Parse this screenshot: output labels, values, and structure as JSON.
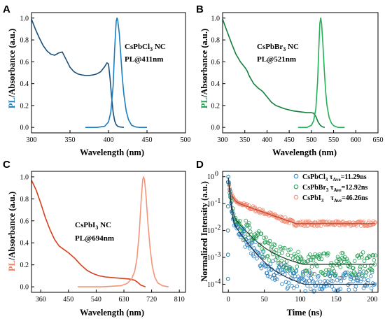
{
  "chart_data": [
    {
      "type": "line",
      "panel": "A",
      "ylabel_colored": "PL",
      "ylabel_sep": "/",
      "ylabel_rest": "Absorbance (a.u.)",
      "ylabel_color": "#1a7dc0",
      "xlabel": "Wavelength (nm)",
      "xlim": [
        300,
        500
      ],
      "ylim": [
        -0.05,
        1.05
      ],
      "xticks": [
        300,
        350,
        400,
        450,
        500
      ],
      "yticks": [
        0.0,
        0.2,
        0.4,
        0.6,
        0.8,
        1.0
      ],
      "annotation_l1_main": "CsPbCl",
      "annotation_l1_sub": "3",
      "annotation_l1_rest": " NC",
      "annotation_l2": "PL@411nm",
      "series": [
        {
          "role": "absorbance",
          "color": "#1a4f7a",
          "x": [
            300,
            305,
            310,
            315,
            320,
            325,
            330,
            335,
            340,
            345,
            350,
            355,
            360,
            365,
            370,
            375,
            380,
            385,
            390,
            395,
            398,
            400,
            402,
            404,
            406,
            408,
            410,
            412,
            415,
            420
          ],
          "y": [
            0.99,
            0.9,
            0.82,
            0.75,
            0.7,
            0.67,
            0.66,
            0.68,
            0.69,
            0.62,
            0.55,
            0.51,
            0.49,
            0.48,
            0.475,
            0.475,
            0.48,
            0.49,
            0.51,
            0.555,
            0.59,
            0.58,
            0.45,
            0.28,
            0.14,
            0.06,
            0.025,
            0.01,
            0.004,
            0.0
          ]
        },
        {
          "role": "PL",
          "color": "#1a7dc0",
          "x": [
            370,
            385,
            395,
            400,
            403,
            406,
            408,
            410,
            411,
            412,
            414,
            416,
            418,
            420,
            423,
            426,
            430,
            435,
            440,
            450
          ],
          "y": [
            0.0,
            0.0,
            0.01,
            0.05,
            0.14,
            0.38,
            0.72,
            0.97,
            1.0,
            0.98,
            0.86,
            0.66,
            0.45,
            0.3,
            0.15,
            0.07,
            0.02,
            0.005,
            0.0,
            0.0
          ]
        }
      ]
    },
    {
      "type": "line",
      "panel": "B",
      "ylabel_colored": "PL",
      "ylabel_sep": "/",
      "ylabel_rest": "Absorbance (a.u.)",
      "ylabel_color": "#16a34a",
      "xlabel": "Wavelength (nm)",
      "xlim": [
        300,
        650
      ],
      "ylim": [
        -0.05,
        1.05
      ],
      "xticks": [
        300,
        350,
        400,
        450,
        500,
        550,
        600,
        650
      ],
      "yticks": [
        0.0,
        0.2,
        0.4,
        0.6,
        0.8,
        1.0
      ],
      "annotation_l1_main": "CsPbBr",
      "annotation_l1_sub": "3",
      "annotation_l1_rest": " NC",
      "annotation_l2": "PL@521nm",
      "series": [
        {
          "role": "absorbance",
          "color": "#14803c",
          "x": [
            300,
            310,
            320,
            330,
            340,
            350,
            355,
            360,
            370,
            380,
            390,
            400,
            410,
            420,
            440,
            460,
            480,
            490,
            500,
            505,
            510,
            515,
            520,
            525,
            530
          ],
          "y": [
            0.99,
            0.88,
            0.77,
            0.67,
            0.6,
            0.55,
            0.52,
            0.47,
            0.4,
            0.36,
            0.33,
            0.28,
            0.23,
            0.2,
            0.17,
            0.15,
            0.14,
            0.135,
            0.135,
            0.13,
            0.1,
            0.05,
            0.02,
            0.005,
            0.0
          ]
        },
        {
          "role": "PL",
          "color": "#22b055",
          "x": [
            470,
            490,
            500,
            505,
            510,
            514,
            517,
            519,
            521,
            523,
            526,
            529,
            532,
            535,
            540,
            545,
            550,
            560,
            575
          ],
          "y": [
            0.0,
            0.0,
            0.02,
            0.06,
            0.17,
            0.42,
            0.75,
            0.95,
            1.0,
            0.95,
            0.76,
            0.52,
            0.33,
            0.2,
            0.09,
            0.04,
            0.015,
            0.0,
            0.0
          ]
        }
      ]
    },
    {
      "type": "line",
      "panel": "C",
      "ylabel_colored": "PL",
      "ylabel_sep": "/",
      "ylabel_rest": "Absorbance (a.u.)",
      "ylabel_color": "#f08060",
      "xlabel": "Wavelength (nm)",
      "xlim": [
        330,
        830
      ],
      "ylim": [
        -0.05,
        1.05
      ],
      "xticks": [
        360,
        450,
        540,
        630,
        720,
        810
      ],
      "yticks": [
        0.0,
        0.2,
        0.4,
        0.6,
        0.8,
        1.0
      ],
      "annotation_l1_main": "CsPbI",
      "annotation_l1_sub": "3",
      "annotation_l1_rest": " NC",
      "annotation_l2": "PL@694nm",
      "series": [
        {
          "role": "absorbance",
          "color": "#d4421b",
          "x": [
            330,
            345,
            360,
            375,
            390,
            405,
            420,
            435,
            450,
            470,
            490,
            510,
            530,
            550,
            570,
            590,
            610,
            630,
            650,
            665,
            675,
            685,
            700
          ],
          "y": [
            0.97,
            0.88,
            0.76,
            0.63,
            0.52,
            0.43,
            0.37,
            0.34,
            0.31,
            0.26,
            0.2,
            0.15,
            0.12,
            0.1,
            0.09,
            0.085,
            0.08,
            0.075,
            0.07,
            0.06,
            0.04,
            0.015,
            0.0
          ]
        },
        {
          "role": "PL",
          "color": "#f4957a",
          "x": [
            480,
            560,
            620,
            640,
            655,
            665,
            672,
            680,
            686,
            691,
            694,
            697,
            702,
            708,
            715,
            722,
            730,
            740,
            755,
            775
          ],
          "y": [
            0.0,
            0.0,
            0.01,
            0.03,
            0.07,
            0.14,
            0.25,
            0.5,
            0.78,
            0.97,
            1.0,
            0.97,
            0.82,
            0.58,
            0.35,
            0.19,
            0.09,
            0.035,
            0.01,
            0.0
          ]
        }
      ]
    },
    {
      "type": "scatter",
      "panel": "D",
      "ylabel": "Normalized Intensity (a.u.)",
      "xlabel": "Time (ns)",
      "xlim": [
        -8,
        208
      ],
      "ylim_log10": [
        -4.3,
        0.2
      ],
      "yscale": "log",
      "xticks": [
        0,
        50,
        100,
        150,
        200
      ],
      "yticks_exp": [
        -4,
        -3,
        -2,
        -1,
        0
      ],
      "ytick_base": "10",
      "legend_position": "top-right",
      "series": [
        {
          "name_main": "CsPbCl",
          "name_sub": "3",
          "tau_label": " τ",
          "tau_sub": "Ave",
          "tau_value": "=11.29ns",
          "color": "#2a7fc1",
          "tau": 11.29,
          "floor": 0.0001,
          "fit_color": "#1f2f3f"
        },
        {
          "name_main": "CsPbBr",
          "name_sub": "3",
          "tau_label": " τ",
          "tau_sub": "Ave",
          "tau_value": "=12.92ns",
          "color": "#1e9a4e",
          "tau": 12.92,
          "floor": 0.00055,
          "fit_color": "#1f3f28"
        },
        {
          "name_main": "CsPbI",
          "name_sub": "3",
          "tau_label": "    τ",
          "tau_sub": "Ave",
          "tau_value": "=46.26ns",
          "color": "#f08a70",
          "tau": 46.26,
          "floor": 0.018,
          "fit_color": "#c2432a"
        }
      ]
    }
  ]
}
